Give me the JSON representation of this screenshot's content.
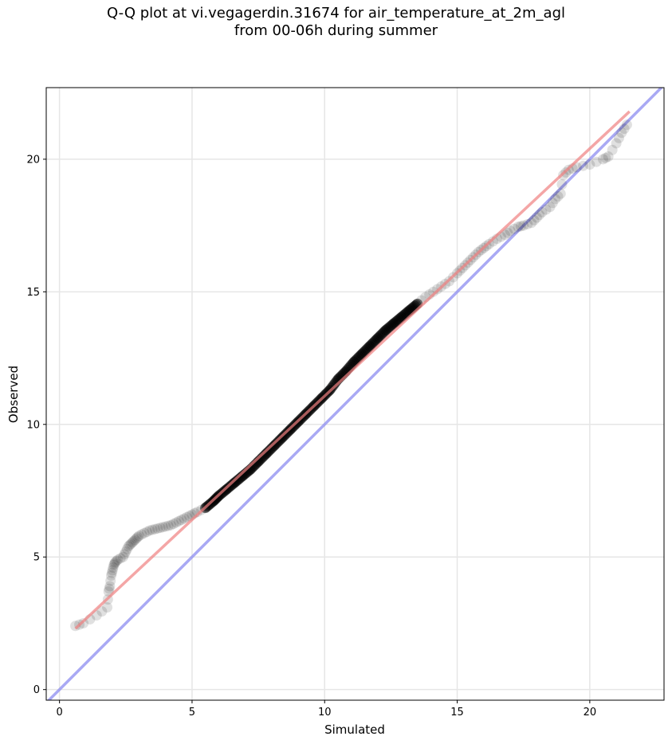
{
  "chart_data": {
    "type": "scatter",
    "title": "Q-Q plot at vi.vegagerdin.31674 for air_temperature_at_2m_agl\nfrom 00-06h during summer",
    "xlabel": "Simulated",
    "ylabel": "Observed",
    "xlim": [
      -0.5,
      22.8
    ],
    "ylim": [
      -0.4,
      22.7
    ],
    "xticks": [
      0,
      5,
      10,
      15,
      20
    ],
    "yticks": [
      0,
      5,
      10,
      15,
      20
    ],
    "grid": true,
    "point_color": "#000000",
    "fit_line": {
      "name": "",
      "color": "#f08080",
      "x": [
        0.6,
        21.5
      ],
      "y": [
        2.3,
        21.8
      ]
    },
    "identity_line": {
      "name": "",
      "color": "#8c8cf0",
      "x": [
        -0.5,
        22.8
      ],
      "y": [
        -0.5,
        22.8
      ]
    },
    "series": [
      {
        "x": [
          0.6,
          0.9,
          1.4,
          1.8,
          1.85,
          1.9,
          1.95,
          2.0,
          2.05,
          2.1,
          2.2,
          2.4,
          2.5,
          2.6,
          2.7,
          2.8,
          2.9,
          3.0,
          3.2,
          3.4,
          3.6,
          3.8,
          4.0,
          4.2,
          4.4,
          4.6,
          4.8,
          5.0,
          5.2,
          5.5,
          5.8,
          6.0,
          6.3,
          6.6,
          6.9,
          7.2,
          7.5,
          7.8,
          8.1,
          8.4,
          8.7,
          9.0,
          9.3,
          9.6,
          9.9,
          10.2,
          10.5,
          10.8,
          11.1,
          11.4,
          11.7,
          12.0,
          12.3,
          12.6,
          12.9,
          13.2,
          13.5,
          13.8,
          14.1,
          14.4,
          14.7,
          15.0,
          15.2,
          15.4,
          15.6,
          15.8,
          16.0,
          16.2,
          16.5,
          16.8,
          17.0,
          17.3,
          17.5,
          17.8,
          18.0,
          18.2,
          18.5,
          18.7,
          18.9,
          19.0,
          19.2,
          19.5,
          20.0,
          20.5,
          20.7,
          21.0,
          21.2,
          21.4
        ],
        "y": [
          2.4,
          2.5,
          2.8,
          3.1,
          3.7,
          3.9,
          4.3,
          4.5,
          4.7,
          4.8,
          4.9,
          5.0,
          5.2,
          5.4,
          5.5,
          5.6,
          5.7,
          5.8,
          5.9,
          6.0,
          6.05,
          6.1,
          6.15,
          6.2,
          6.3,
          6.4,
          6.5,
          6.6,
          6.7,
          6.85,
          7.1,
          7.3,
          7.55,
          7.8,
          8.05,
          8.3,
          8.6,
          8.9,
          9.2,
          9.5,
          9.8,
          10.1,
          10.4,
          10.7,
          11.0,
          11.3,
          11.7,
          12.0,
          12.35,
          12.65,
          12.95,
          13.25,
          13.55,
          13.8,
          14.05,
          14.3,
          14.55,
          14.8,
          15.0,
          15.2,
          15.4,
          15.7,
          15.9,
          16.1,
          16.3,
          16.5,
          16.65,
          16.8,
          17.0,
          17.15,
          17.3,
          17.45,
          17.5,
          17.6,
          17.8,
          18.0,
          18.2,
          18.5,
          18.7,
          19.4,
          19.6,
          19.7,
          19.8,
          20.0,
          20.1,
          20.6,
          21.0,
          21.3
        ]
      }
    ]
  }
}
